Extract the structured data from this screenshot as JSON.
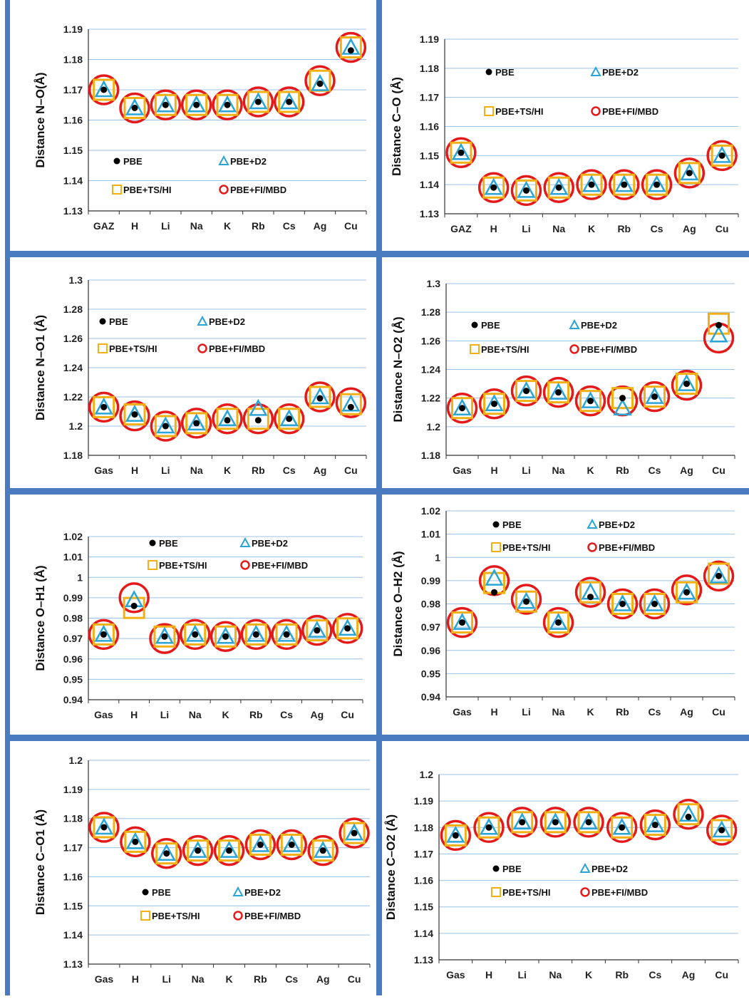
{
  "colors": {
    "frame": "#4a7abf",
    "grid": "#9cc0e4",
    "pbe": "#000000",
    "d2": "#2aa5d6",
    "ts": "#f2b015",
    "fi": "#e41a1a"
  },
  "chart_data": [
    {
      "type": "scatter",
      "ylabel": "Distance N–O(Å)",
      "categories": [
        "GAZ",
        "H",
        "Li",
        "Na",
        "K",
        "Rb",
        "Cs",
        "Ag",
        "Cu"
      ],
      "ylim": [
        1.13,
        1.19
      ],
      "yticks": [
        "1.13",
        "1.14",
        "1.15",
        "1.16",
        "1.17",
        "1.18",
        "1.19"
      ],
      "legend_position": "bottom",
      "series": [
        {
          "name": "PBE",
          "marker": "dot",
          "values": [
            1.17,
            1.164,
            1.165,
            1.165,
            1.165,
            1.166,
            1.166,
            1.172,
            1.183
          ]
        },
        {
          "name": "PBE+D2",
          "marker": "triangle",
          "values": [
            1.17,
            1.164,
            1.165,
            1.165,
            1.165,
            1.166,
            1.166,
            1.172,
            1.184
          ]
        },
        {
          "name": "PBE+TS/HI",
          "marker": "square",
          "values": [
            1.17,
            1.164,
            1.165,
            1.165,
            1.165,
            1.166,
            1.166,
            1.173,
            1.184
          ]
        },
        {
          "name": "PBE+FI/MBD",
          "marker": "circle",
          "values": [
            1.17,
            1.164,
            1.165,
            1.165,
            1.165,
            1.166,
            1.166,
            1.173,
            1.184
          ]
        }
      ]
    },
    {
      "type": "scatter",
      "ylabel": "Distance C–O (Å)",
      "categories": [
        "GAZ",
        "H",
        "Li",
        "Na",
        "K",
        "Rb",
        "Cs",
        "Ag",
        "Cu"
      ],
      "ylim": [
        1.13,
        1.19
      ],
      "yticks": [
        "1.13",
        "1.14",
        "1.15",
        "1.16",
        "1.17",
        "1.18",
        "1.19"
      ],
      "legend_position": "top",
      "series": [
        {
          "name": "PBE",
          "marker": "dot",
          "values": [
            1.151,
            1.139,
            1.138,
            1.139,
            1.14,
            1.14,
            1.14,
            1.144,
            1.15
          ]
        },
        {
          "name": "PBE+D2",
          "marker": "triangle",
          "values": [
            1.151,
            1.139,
            1.138,
            1.139,
            1.14,
            1.14,
            1.14,
            1.144,
            1.15
          ]
        },
        {
          "name": "PBE+TS/HI",
          "marker": "square",
          "values": [
            1.151,
            1.139,
            1.138,
            1.139,
            1.14,
            1.14,
            1.14,
            1.144,
            1.15
          ]
        },
        {
          "name": "PBE+FI/MBD",
          "marker": "circle",
          "values": [
            1.151,
            1.139,
            1.138,
            1.139,
            1.14,
            1.14,
            1.14,
            1.144,
            1.15
          ]
        }
      ]
    },
    {
      "type": "scatter",
      "ylabel": "Distance N–O1 (Å)",
      "categories": [
        "Gas",
        "H",
        "Li",
        "Na",
        "K",
        "Rb",
        "Cs",
        "Ag",
        "Cu"
      ],
      "ylim": [
        1.18,
        1.3
      ],
      "yticks": [
        "1.18",
        "1.2",
        "1.22",
        "1.24",
        "1.26",
        "1.28",
        "1.3"
      ],
      "legend_position": "top",
      "series": [
        {
          "name": "PBE",
          "marker": "dot",
          "values": [
            1.213,
            1.208,
            1.2,
            1.202,
            1.204,
            1.204,
            1.205,
            1.219,
            1.213
          ]
        },
        {
          "name": "PBE+D2",
          "marker": "triangle",
          "values": [
            1.213,
            1.208,
            1.2,
            1.202,
            1.205,
            1.212,
            1.205,
            1.22,
            1.215
          ]
        },
        {
          "name": "PBE+TS/HI",
          "marker": "square",
          "values": [
            1.213,
            1.208,
            1.2,
            1.202,
            1.205,
            1.205,
            1.205,
            1.22,
            1.215
          ]
        },
        {
          "name": "PBE+FI/MBD",
          "marker": "circle",
          "values": [
            1.213,
            1.207,
            1.2,
            1.202,
            1.205,
            1.205,
            1.205,
            1.22,
            1.216
          ]
        }
      ]
    },
    {
      "type": "scatter",
      "ylabel": "Distance N–O2 (Å)",
      "categories": [
        "Gas",
        "H",
        "Li",
        "Na",
        "K",
        "Rb",
        "Cs",
        "Ag",
        "Cu"
      ],
      "ylim": [
        1.18,
        1.3
      ],
      "yticks": [
        "1.18",
        "1.2",
        "1.22",
        "1.24",
        "1.26",
        "1.28",
        "1.3"
      ],
      "legend_position": "top",
      "series": [
        {
          "name": "PBE",
          "marker": "dot",
          "values": [
            1.213,
            1.216,
            1.225,
            1.224,
            1.218,
            1.22,
            1.221,
            1.23,
            1.271
          ]
        },
        {
          "name": "PBE+D2",
          "marker": "triangle",
          "values": [
            1.213,
            1.216,
            1.225,
            1.224,
            1.218,
            1.213,
            1.221,
            1.23,
            1.264
          ]
        },
        {
          "name": "PBE+TS/HI",
          "marker": "square",
          "values": [
            1.213,
            1.216,
            1.225,
            1.224,
            1.218,
            1.22,
            1.221,
            1.23,
            1.272
          ]
        },
        {
          "name": "PBE+FI/MBD",
          "marker": "circle",
          "values": [
            1.213,
            1.216,
            1.225,
            1.224,
            1.218,
            1.218,
            1.221,
            1.229,
            1.262
          ]
        }
      ]
    },
    {
      "type": "scatter",
      "ylabel": "Distance O–H1 (Å)",
      "categories": [
        "Gas",
        "H",
        "Li",
        "Na",
        "K",
        "Rb",
        "Cs",
        "Ag",
        "Cu"
      ],
      "ylim": [
        0.94,
        1.02
      ],
      "yticks": [
        "0.94",
        "0.95",
        "0.96",
        "0.97",
        "0.98",
        "0.99",
        "1",
        "1.01",
        "1.02"
      ],
      "legend_position": "top",
      "series": [
        {
          "name": "PBE",
          "marker": "dot",
          "values": [
            0.972,
            0.986,
            0.971,
            0.972,
            0.971,
            0.972,
            0.972,
            0.974,
            0.975
          ]
        },
        {
          "name": "PBE+D2",
          "marker": "triangle",
          "values": [
            0.972,
            0.989,
            0.971,
            0.972,
            0.971,
            0.972,
            0.972,
            0.974,
            0.975
          ]
        },
        {
          "name": "PBE+TS/HI",
          "marker": "square",
          "values": [
            0.972,
            0.985,
            0.971,
            0.972,
            0.971,
            0.972,
            0.972,
            0.974,
            0.975
          ]
        },
        {
          "name": "PBE+FI/MBD",
          "marker": "circle",
          "values": [
            0.972,
            0.99,
            0.97,
            0.972,
            0.971,
            0.972,
            0.972,
            0.974,
            0.975
          ]
        }
      ]
    },
    {
      "type": "scatter",
      "ylabel": "Distance O–H2 (Å)",
      "categories": [
        "Gas",
        "H",
        "Li",
        "Na",
        "K",
        "Rb",
        "Cs",
        "Ag",
        "Cu"
      ],
      "ylim": [
        0.94,
        1.02
      ],
      "yticks": [
        "0.94",
        "0.95",
        "0.96",
        "0.97",
        "0.98",
        "0.99",
        "1",
        "1.01",
        "1.02"
      ],
      "legend_position": "top",
      "series": [
        {
          "name": "PBE",
          "marker": "dot",
          "values": [
            0.972,
            0.985,
            0.981,
            0.972,
            0.983,
            0.98,
            0.98,
            0.985,
            0.992
          ]
        },
        {
          "name": "PBE+D2",
          "marker": "triangle",
          "values": [
            0.972,
            0.991,
            0.981,
            0.972,
            0.985,
            0.98,
            0.98,
            0.985,
            0.992
          ]
        },
        {
          "name": "PBE+TS/HI",
          "marker": "square",
          "values": [
            0.972,
            0.989,
            0.981,
            0.972,
            0.985,
            0.98,
            0.98,
            0.985,
            0.993
          ]
        },
        {
          "name": "PBE+FI/MBD",
          "marker": "circle",
          "values": [
            0.972,
            0.99,
            0.982,
            0.972,
            0.985,
            0.98,
            0.98,
            0.986,
            0.992
          ]
        }
      ]
    },
    {
      "type": "scatter",
      "ylabel": "Distance C–O1 (Å)",
      "categories": [
        "Gas",
        "H",
        "Li",
        "Na",
        "K",
        "Rb",
        "Cs",
        "Ag",
        "Cu"
      ],
      "ylim": [
        1.13,
        1.2
      ],
      "yticks": [
        "1.13",
        "1.14",
        "1.15",
        "1.16",
        "1.17",
        "1.18",
        "1.19",
        "1.2"
      ],
      "legend_position": "bottom",
      "series": [
        {
          "name": "PBE",
          "marker": "dot",
          "values": [
            1.177,
            1.172,
            1.168,
            1.169,
            1.169,
            1.171,
            1.171,
            1.169,
            1.175
          ]
        },
        {
          "name": "PBE+D2",
          "marker": "triangle",
          "values": [
            1.177,
            1.172,
            1.168,
            1.169,
            1.169,
            1.171,
            1.171,
            1.169,
            1.175
          ]
        },
        {
          "name": "PBE+TS/HI",
          "marker": "square",
          "values": [
            1.177,
            1.172,
            1.168,
            1.169,
            1.169,
            1.171,
            1.171,
            1.169,
            1.175
          ]
        },
        {
          "name": "PBE+FI/MBD",
          "marker": "circle",
          "values": [
            1.177,
            1.172,
            1.168,
            1.169,
            1.169,
            1.171,
            1.171,
            1.169,
            1.175
          ]
        }
      ]
    },
    {
      "type": "scatter",
      "ylabel": "Distance C–O2 (Å)",
      "categories": [
        "Gas",
        "H",
        "Li",
        "Na",
        "K",
        "Rb",
        "Cs",
        "Ag",
        "Cu"
      ],
      "ylim": [
        1.13,
        1.2
      ],
      "yticks": [
        "1.13",
        "1.14",
        "1.15",
        "1.16",
        "1.17",
        "1.18",
        "1.19",
        "1.2"
      ],
      "legend_position": "bottom",
      "series": [
        {
          "name": "PBE",
          "marker": "dot",
          "values": [
            1.177,
            1.18,
            1.182,
            1.182,
            1.182,
            1.18,
            1.181,
            1.184,
            1.179
          ]
        },
        {
          "name": "PBE+D2",
          "marker": "triangle",
          "values": [
            1.177,
            1.18,
            1.182,
            1.182,
            1.182,
            1.18,
            1.181,
            1.185,
            1.179
          ]
        },
        {
          "name": "PBE+TS/HI",
          "marker": "square",
          "values": [
            1.177,
            1.18,
            1.182,
            1.182,
            1.182,
            1.18,
            1.181,
            1.185,
            1.179
          ]
        },
        {
          "name": "PBE+FI/MBD",
          "marker": "circle",
          "values": [
            1.177,
            1.18,
            1.182,
            1.182,
            1.182,
            1.18,
            1.181,
            1.185,
            1.179
          ]
        }
      ]
    }
  ]
}
